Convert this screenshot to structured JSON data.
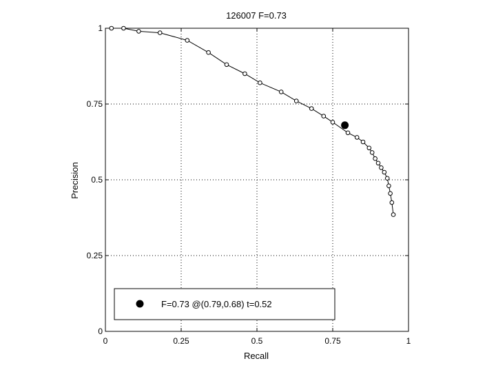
{
  "chart_data": {
    "type": "line",
    "title": "126007 F=0.73",
    "xlabel": "Recall",
    "ylabel": "Precision",
    "xlim": [
      0,
      1
    ],
    "ylim": [
      0,
      1
    ],
    "xticks": [
      "0",
      "0.25",
      "0.5",
      "0.75",
      "1"
    ],
    "yticks": [
      "0",
      "0.25",
      "0.5",
      "0.75",
      "1"
    ],
    "grid": true,
    "legend_position": "bottom-left",
    "series": [
      {
        "marker": "open-circle",
        "color": "#000000",
        "x": [
          0.02,
          0.06,
          0.11,
          0.18,
          0.27,
          0.34,
          0.4,
          0.46,
          0.51,
          0.58,
          0.63,
          0.68,
          0.72,
          0.75,
          0.8,
          0.83,
          0.85,
          0.87,
          0.88,
          0.89,
          0.9,
          0.91,
          0.92,
          0.93,
          0.935,
          0.94,
          0.945,
          0.95
        ],
        "y": [
          1.0,
          1.0,
          0.99,
          0.985,
          0.96,
          0.92,
          0.88,
          0.85,
          0.82,
          0.79,
          0.76,
          0.735,
          0.71,
          0.69,
          0.655,
          0.64,
          0.625,
          0.605,
          0.59,
          0.57,
          0.555,
          0.54,
          0.525,
          0.505,
          0.48,
          0.455,
          0.425,
          0.385
        ]
      }
    ],
    "best_point": {
      "x": 0.79,
      "y": 0.68,
      "color": "#000000",
      "legend": "F=0.73 @(0.79,0.68) t=0.52"
    }
  }
}
